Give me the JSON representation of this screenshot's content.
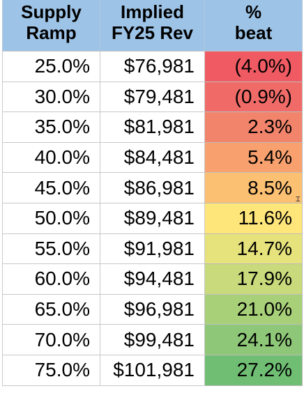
{
  "table": {
    "headers": [
      [
        "Supply",
        "Ramp"
      ],
      [
        "Implied",
        "FY25 Rev"
      ],
      [
        "%",
        "beat"
      ]
    ],
    "rows": [
      {
        "ramp": "25.0%",
        "rev": "$76,981",
        "beat": "(4.0%)",
        "color": "#ef5a63"
      },
      {
        "ramp": "30.0%",
        "rev": "$79,481",
        "beat": "(0.9%)",
        "color": "#f06b67"
      },
      {
        "ramp": "35.0%",
        "rev": "$81,981",
        "beat": "2.3%",
        "color": "#f3846c"
      },
      {
        "ramp": "40.0%",
        "rev": "$84,481",
        "beat": "5.4%",
        "color": "#f8a16f"
      },
      {
        "ramp": "45.0%",
        "rev": "$86,981",
        "beat": "8.5%",
        "color": "#fcc073"
      },
      {
        "ramp": "50.0%",
        "rev": "$89,481",
        "beat": "11.6%",
        "color": "#fee67b"
      },
      {
        "ramp": "55.0%",
        "rev": "$91,981",
        "beat": "14.7%",
        "color": "#e6e37c"
      },
      {
        "ramp": "60.0%",
        "rev": "$94,481",
        "beat": "17.9%",
        "color": "#c8da7b"
      },
      {
        "ramp": "65.0%",
        "rev": "$96,981",
        "beat": "21.0%",
        "color": "#a8d079"
      },
      {
        "ramp": "70.0%",
        "rev": "$99,481",
        "beat": "24.1%",
        "color": "#8dc777"
      },
      {
        "ramp": "75.0%",
        "rev": "$101,981",
        "beat": "27.2%",
        "color": "#6fbe73"
      }
    ]
  }
}
